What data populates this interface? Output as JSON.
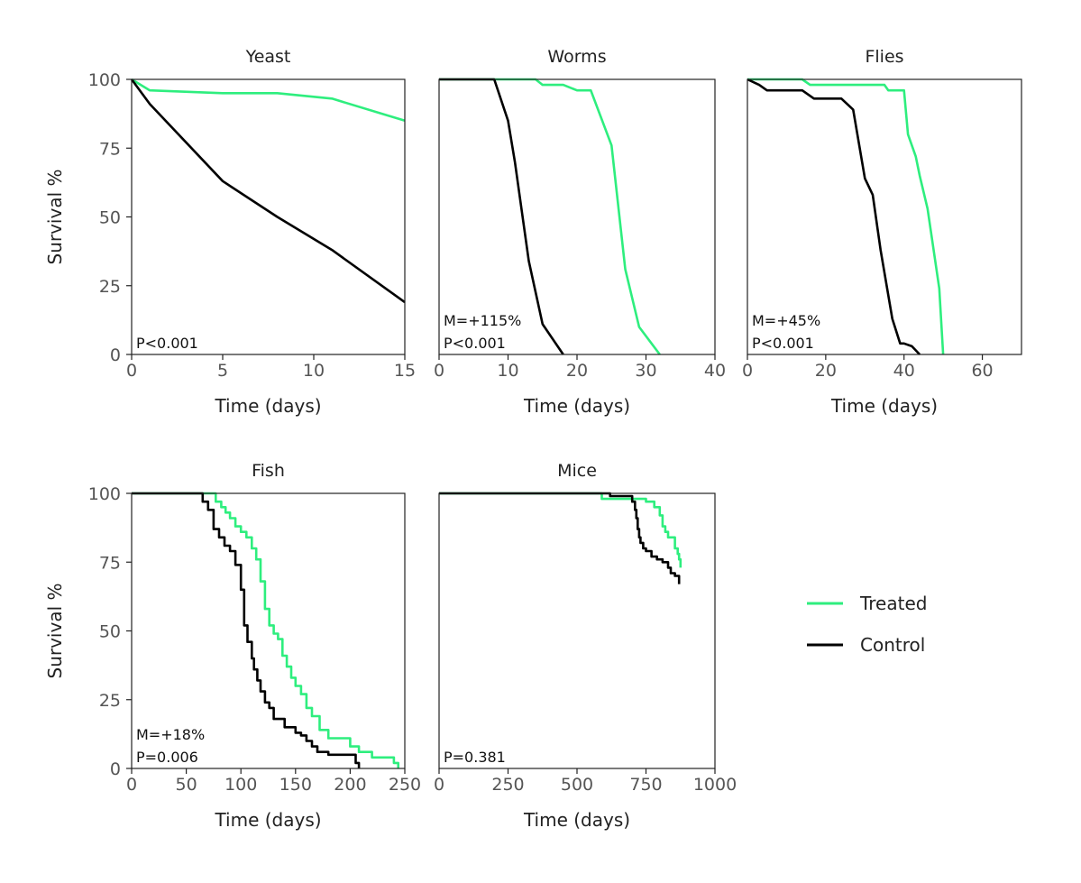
{
  "colors": {
    "treated": "#2EEE7E",
    "control": "#000000"
  },
  "legend": {
    "position": "right",
    "items": [
      {
        "key": "treated",
        "label": "Treated"
      },
      {
        "key": "control",
        "label": "Control"
      }
    ]
  },
  "chart_data": [
    {
      "type": "line",
      "title": "Yeast",
      "xlabel": "Time (days)",
      "ylabel": "Survival %",
      "xlim": [
        0,
        15
      ],
      "ylim": [
        0,
        100
      ],
      "xticks": [
        0,
        5,
        10,
        15
      ],
      "yticks": [
        0,
        25,
        50,
        75,
        100
      ],
      "annotations": [
        "P<0.001"
      ],
      "series": [
        {
          "name": "Treated",
          "key": "treated",
          "step": false,
          "x": [
            0,
            1,
            5,
            8,
            11,
            15
          ],
          "y": [
            100,
            96,
            95,
            95,
            93,
            85
          ]
        },
        {
          "name": "Control",
          "key": "control",
          "step": false,
          "x": [
            0,
            1,
            5,
            8,
            11,
            15
          ],
          "y": [
            100,
            91,
            63,
            50,
            38,
            19
          ]
        }
      ]
    },
    {
      "type": "line",
      "title": "Worms",
      "xlabel": "Time (days)",
      "ylabel": "",
      "xlim": [
        0,
        40
      ],
      "ylim": [
        0,
        100
      ],
      "xticks": [
        0,
        10,
        20,
        30,
        40
      ],
      "yticks": [],
      "annotations": [
        "M=+115%",
        "P<0.001"
      ],
      "series": [
        {
          "name": "Treated",
          "key": "treated",
          "step": false,
          "x": [
            0,
            14,
            15,
            18,
            20,
            22,
            25,
            27,
            29,
            32
          ],
          "y": [
            100,
            100,
            98,
            98,
            96,
            96,
            76,
            31,
            10,
            0
          ]
        },
        {
          "name": "Control",
          "key": "control",
          "step": false,
          "x": [
            0,
            8,
            10,
            11,
            13,
            15,
            18
          ],
          "y": [
            100,
            100,
            85,
            70,
            34,
            11,
            0
          ]
        }
      ]
    },
    {
      "type": "line",
      "title": "Flies",
      "xlabel": "Time (days)",
      "ylabel": "",
      "xlim": [
        0,
        70
      ],
      "ylim": [
        0,
        100
      ],
      "xticks": [
        0,
        20,
        40,
        60
      ],
      "yticks": [],
      "annotations": [
        "M=+45%",
        "P<0.001"
      ],
      "series": [
        {
          "name": "Treated",
          "key": "treated",
          "step": false,
          "x": [
            0,
            14,
            16,
            35,
            36,
            40,
            41,
            43,
            44,
            46,
            49,
            50
          ],
          "y": [
            100,
            100,
            98,
            98,
            96,
            96,
            80,
            72,
            65,
            53,
            24,
            0
          ]
        },
        {
          "name": "Control",
          "key": "control",
          "step": false,
          "x": [
            0,
            3,
            5,
            14,
            17,
            24,
            27,
            30,
            32,
            34,
            37,
            39,
            40,
            42,
            44
          ],
          "y": [
            100,
            98,
            96,
            96,
            93,
            93,
            89,
            64,
            58,
            38,
            13,
            4,
            4,
            3,
            0
          ]
        }
      ]
    },
    {
      "type": "line",
      "title": "Fish",
      "xlabel": "Time (days)",
      "ylabel": "Survival %",
      "xlim": [
        0,
        250
      ],
      "ylim": [
        0,
        100
      ],
      "xticks": [
        0,
        50,
        100,
        150,
        200,
        250
      ],
      "yticks": [
        0,
        25,
        50,
        75,
        100
      ],
      "annotations": [
        "M=+18%",
        "P=0.006"
      ],
      "series": [
        {
          "name": "Treated",
          "key": "treated",
          "step": true,
          "x": [
            0,
            77,
            82,
            86,
            90,
            95,
            100,
            105,
            110,
            114,
            118,
            122,
            126,
            130,
            134,
            138,
            142,
            146,
            150,
            155,
            160,
            165,
            172,
            180,
            200,
            208,
            220,
            240,
            244
          ],
          "y": [
            100,
            97,
            95,
            93,
            91,
            88,
            86,
            84,
            80,
            76,
            68,
            58,
            52,
            49,
            47,
            41,
            37,
            33,
            30,
            27,
            22,
            19,
            14,
            11,
            8,
            6,
            4,
            2,
            0
          ]
        },
        {
          "name": "Control",
          "key": "control",
          "step": true,
          "x": [
            0,
            65,
            70,
            75,
            80,
            85,
            90,
            95,
            100,
            103,
            106,
            110,
            112,
            115,
            118,
            122,
            126,
            130,
            140,
            150,
            155,
            160,
            165,
            170,
            180,
            205,
            208
          ],
          "y": [
            100,
            97,
            94,
            87,
            84,
            81,
            79,
            74,
            65,
            52,
            46,
            40,
            36,
            32,
            28,
            24,
            22,
            18,
            15,
            13,
            12,
            10,
            8,
            6,
            5,
            2,
            0
          ]
        }
      ]
    },
    {
      "type": "line",
      "title": "Mice",
      "xlabel": "Time (days)",
      "ylabel": "",
      "xlim": [
        0,
        1000
      ],
      "ylim": [
        0,
        100
      ],
      "xticks": [
        0,
        250,
        500,
        750,
        1000
      ],
      "yticks": [],
      "annotations": [
        "P=0.381"
      ],
      "series": [
        {
          "name": "Treated",
          "key": "treated",
          "step": true,
          "x": [
            0,
            590,
            700,
            750,
            780,
            800,
            810,
            820,
            830,
            855,
            865,
            870,
            875
          ],
          "y": [
            100,
            98,
            98,
            97,
            95,
            92,
            88,
            86,
            84,
            80,
            78,
            76,
            73
          ]
        },
        {
          "name": "Control",
          "key": "control",
          "step": true,
          "x": [
            0,
            620,
            700,
            710,
            715,
            720,
            725,
            730,
            740,
            750,
            770,
            790,
            810,
            830,
            840,
            855,
            870
          ],
          "y": [
            100,
            99,
            97,
            94,
            91,
            87,
            84,
            82,
            80,
            79,
            77,
            76,
            75,
            73,
            71,
            70,
            67
          ]
        }
      ]
    }
  ]
}
